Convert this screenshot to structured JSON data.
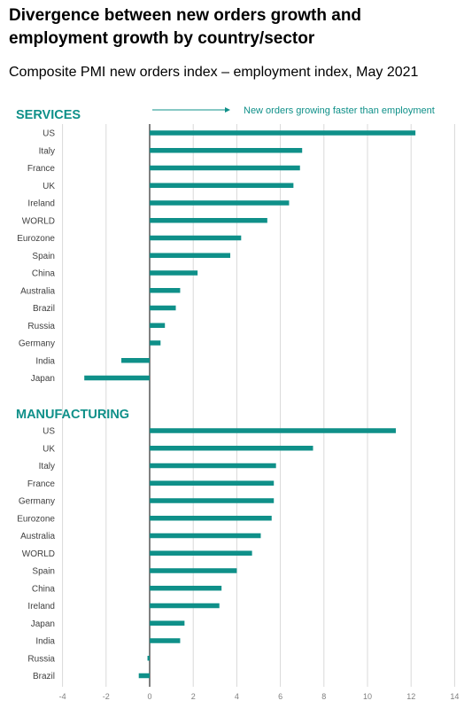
{
  "colors": {
    "bar": "#0f9089",
    "section": "#0f9089",
    "grid": "#d9d9d9",
    "axis": "#000000",
    "label": "#404040",
    "tick": "#7f7f7f"
  },
  "title": "Divergence between new orders growth and employment growth by country/sector",
  "subtitle": "Composite PMI new orders index – employment index, May 2021",
  "chart_data": {
    "type": "bar",
    "orientation": "horizontal",
    "annotation": "New orders growing faster than employment",
    "xlim": [
      -4,
      14
    ],
    "xticks": [
      -4,
      -2,
      0,
      2,
      4,
      6,
      8,
      10,
      12,
      14
    ],
    "grid": true,
    "sections": [
      {
        "name": "SERVICES",
        "categories": [
          "US",
          "Italy",
          "France",
          "UK",
          "Ireland",
          "WORLD",
          "Eurozone",
          "Spain",
          "China",
          "Australia",
          "Brazil",
          "Russia",
          "Germany",
          "India",
          "Japan"
        ],
        "values": [
          12.2,
          7.0,
          6.9,
          6.6,
          6.4,
          5.4,
          4.2,
          3.7,
          2.2,
          1.4,
          1.2,
          0.7,
          0.5,
          -1.3,
          -3.0
        ]
      },
      {
        "name": "MANUFACTURING",
        "categories": [
          "US",
          "UK",
          "Italy",
          "France",
          "Germany",
          "Eurozone",
          "Australia",
          "WORLD",
          "Spain",
          "China",
          "Ireland",
          "Japan",
          "India",
          "Russia",
          "Brazil"
        ],
        "values": [
          11.3,
          7.5,
          5.8,
          5.7,
          5.7,
          5.6,
          5.1,
          4.7,
          4.0,
          3.3,
          3.2,
          1.6,
          1.4,
          -0.1,
          -0.5
        ]
      }
    ]
  }
}
